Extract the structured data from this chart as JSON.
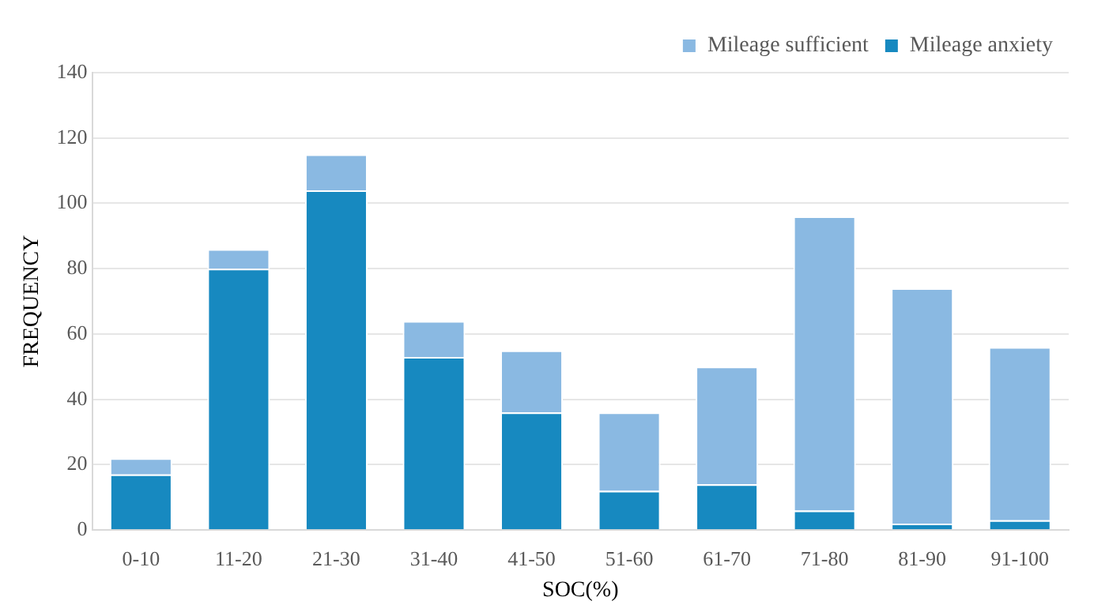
{
  "chart_data": {
    "type": "bar",
    "stacked": true,
    "xlabel": "SOC(%)",
    "ylabel": "FREQUENCY",
    "categories": [
      "0-10",
      "11-20",
      "21-30",
      "31-40",
      "41-50",
      "51-60",
      "61-70",
      "71-80",
      "81-90",
      "91-100"
    ],
    "series": [
      {
        "name": "Mileage anxiety",
        "color": "#1789c0",
        "values": [
          17,
          80,
          104,
          53,
          36,
          12,
          14,
          6,
          2,
          3
        ]
      },
      {
        "name": "Mileage sufficient",
        "color": "#8ab9e2",
        "values": [
          5,
          6,
          11,
          11,
          19,
          24,
          36,
          90,
          72,
          53
        ]
      }
    ],
    "ylim": [
      0,
      140
    ],
    "yticks": [
      0,
      20,
      40,
      60,
      80,
      100,
      120,
      140
    ],
    "grid": "y",
    "legend": "top right"
  }
}
